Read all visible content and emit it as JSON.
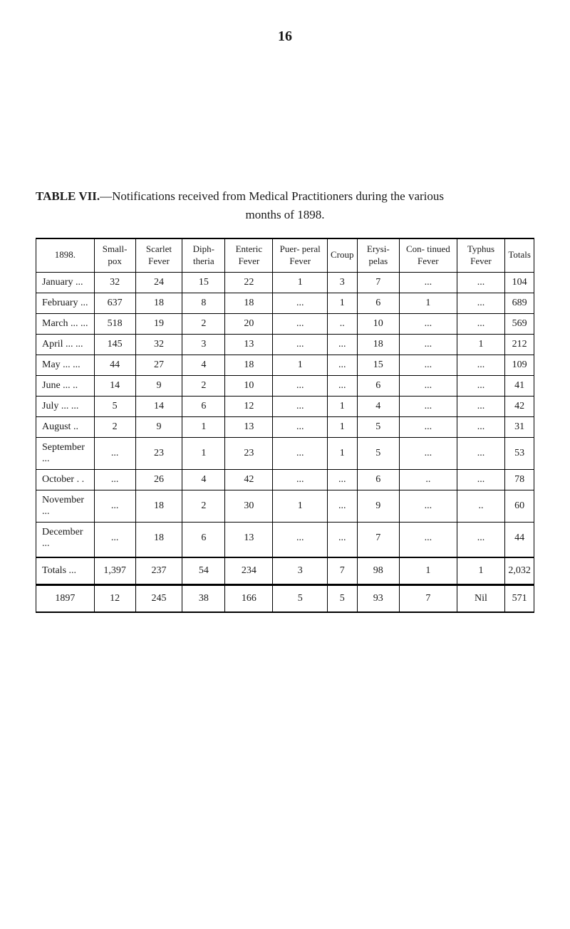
{
  "page_number": "16",
  "title_prefix": "TABLE VII.",
  "title_rest_line1": "—Notifications received from Medical Practitioners during the various",
  "title_line2": "months of 1898.",
  "headers": {
    "year": "1898.",
    "c1": "Small-\npox",
    "c2": "Scarlet\nFever",
    "c3": "Diph-\ntheria",
    "c4": "Enteric\nFever",
    "c5": "Puer-\nperal\nFever",
    "c6": "Croup",
    "c7": "Erysi-\npelas",
    "c8": "Con-\ntinued\nFever",
    "c9": "Typhus\nFever",
    "c10": "Totals"
  },
  "rows": [
    {
      "m": "January   ...",
      "c1": "32",
      "c2": "24",
      "c3": "15",
      "c4": "22",
      "c5": "1",
      "c6": "3",
      "c7": "7",
      "c8": "...",
      "c9": "...",
      "c10": "104"
    },
    {
      "m": "February  ...",
      "c1": "637",
      "c2": "18",
      "c3": "8",
      "c4": "18",
      "c5": "...",
      "c6": "1",
      "c7": "6",
      "c8": "1",
      "c9": "...",
      "c10": "689"
    },
    {
      "m": "March ...  ...",
      "c1": "518",
      "c2": "19",
      "c3": "2",
      "c4": "20",
      "c5": "...",
      "c6": "..",
      "c7": "10",
      "c8": "...",
      "c9": "...",
      "c10": "569"
    },
    {
      "m": "April  ...  ...",
      "c1": "145",
      "c2": "32",
      "c3": "3",
      "c4": "13",
      "c5": "...",
      "c6": "...",
      "c7": "18",
      "c8": "...",
      "c9": "1",
      "c10": "212"
    },
    {
      "m": "May    ...  ...",
      "c1": "44",
      "c2": "27",
      "c3": "4",
      "c4": "18",
      "c5": "1",
      "c6": "...",
      "c7": "15",
      "c8": "...",
      "c9": "...",
      "c10": "109"
    },
    {
      "m": "June   ...  ..",
      "c1": "14",
      "c2": "9",
      "c3": "2",
      "c4": "10",
      "c5": "...",
      "c6": "...",
      "c7": "6",
      "c8": "...",
      "c9": "...",
      "c10": "41"
    },
    {
      "m": "July   ...  ...",
      "c1": "5",
      "c2": "14",
      "c3": "6",
      "c4": "12",
      "c5": "...",
      "c6": "1",
      "c7": "4",
      "c8": "...",
      "c9": "...",
      "c10": "42"
    },
    {
      "m": "August    ..",
      "c1": "2",
      "c2": "9",
      "c3": "1",
      "c4": "13",
      "c5": "...",
      "c6": "1",
      "c7": "5",
      "c8": "...",
      "c9": "...",
      "c10": "31"
    },
    {
      "m": "September ...",
      "c1": "...",
      "c2": "23",
      "c3": "1",
      "c4": "23",
      "c5": "...",
      "c6": "1",
      "c7": "5",
      "c8": "...",
      "c9": "...",
      "c10": "53"
    },
    {
      "m": "October   . .",
      "c1": "...",
      "c2": "26",
      "c3": "4",
      "c4": "42",
      "c5": "...",
      "c6": "...",
      "c7": "6",
      "c8": "..",
      "c9": "...",
      "c10": "78"
    },
    {
      "m": "November ...",
      "c1": "...",
      "c2": "18",
      "c3": "2",
      "c4": "30",
      "c5": "1",
      "c6": "...",
      "c7": "9",
      "c8": "...",
      "c9": "..",
      "c10": "60"
    },
    {
      "m": "December ...",
      "c1": "...",
      "c2": "18",
      "c3": "6",
      "c4": "13",
      "c5": "...",
      "c6": "...",
      "c7": "7",
      "c8": "...",
      "c9": "...",
      "c10": "44"
    }
  ],
  "totals": {
    "label": "Totals   ...",
    "c1": "1,397",
    "c2": "237",
    "c3": "54",
    "c4": "234",
    "c5": "3",
    "c6": "7",
    "c7": "98",
    "c8": "1",
    "c9": "1",
    "c10": "2,032"
  },
  "compare": {
    "label": "1897",
    "c1": "12",
    "c2": "245",
    "c3": "38",
    "c4": "166",
    "c5": "5",
    "c6": "5",
    "c7": "93",
    "c8": "7",
    "c9": "Nil",
    "c10": "571"
  }
}
